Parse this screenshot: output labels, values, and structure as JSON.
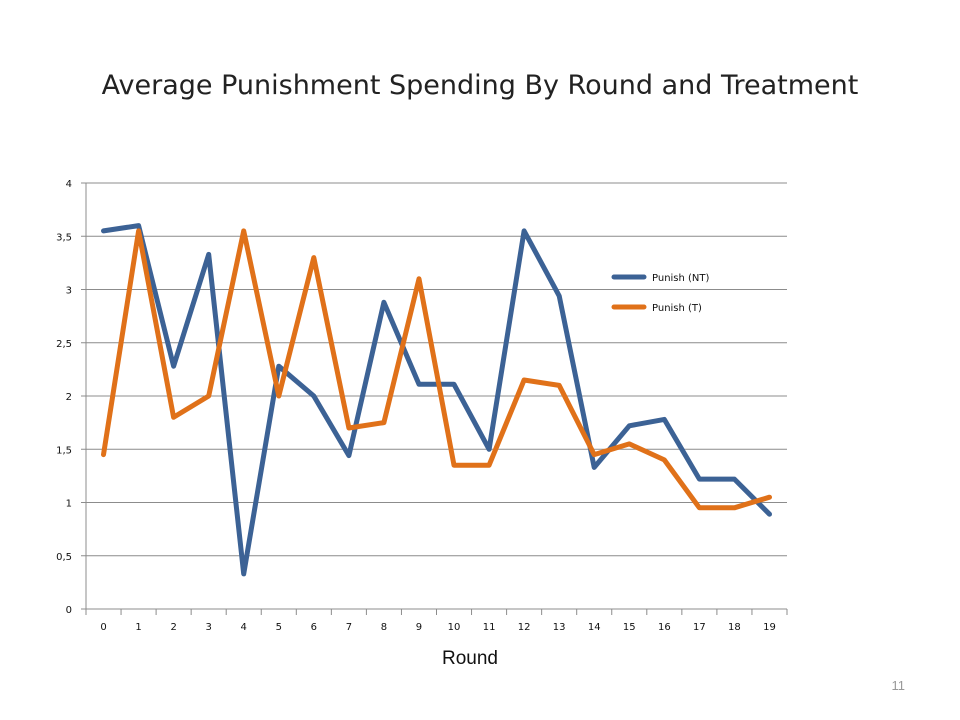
{
  "slide": {
    "page_number": "11"
  },
  "chart_data": {
    "type": "line",
    "title": "Average Punishment Spending By Round and Treatment",
    "xlabel": "Round",
    "ylabel": "",
    "categories": [
      "0",
      "1",
      "2",
      "3",
      "4",
      "5",
      "6",
      "7",
      "8",
      "9",
      "10",
      "11",
      "12",
      "13",
      "14",
      "15",
      "16",
      "17",
      "18",
      "19"
    ],
    "y_ticks": [
      "0",
      "0,5",
      "1",
      "1,5",
      "2",
      "2,5",
      "3",
      "3,5",
      "4"
    ],
    "ylim": [
      0,
      4
    ],
    "grid": true,
    "legend_position": "right",
    "series": [
      {
        "name": "Punish (NT)",
        "color": "#3c6295",
        "values": [
          3.55,
          3.6,
          2.28,
          3.33,
          0.33,
          2.28,
          2.0,
          1.44,
          2.88,
          2.11,
          2.11,
          1.5,
          3.55,
          2.94,
          1.33,
          1.72,
          1.78,
          1.22,
          1.22,
          0.89
        ]
      },
      {
        "name": "Punish (T)",
        "color": "#e07119",
        "values": [
          1.45,
          3.55,
          1.8,
          2.0,
          3.55,
          2.0,
          3.3,
          1.7,
          1.75,
          3.1,
          1.35,
          1.35,
          2.15,
          2.1,
          1.45,
          1.55,
          1.4,
          0.95,
          0.95,
          1.05
        ]
      }
    ]
  }
}
